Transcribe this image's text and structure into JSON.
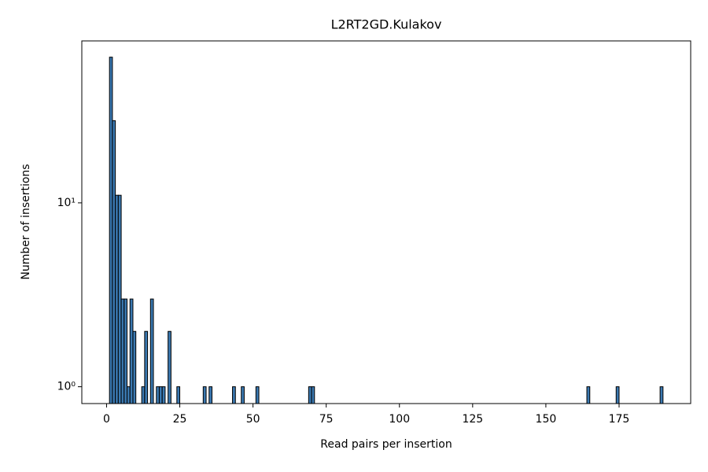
{
  "chart_data": {
    "type": "histogram",
    "title": "L2RT2GD.Kulakov",
    "x_label": "Read pairs per insertion",
    "y_label": "Number of insertions",
    "log_y": true,
    "color": "#3a78b0",
    "edge_color": "#000000",
    "bins": [
      1,
      2,
      3,
      4,
      5,
      6,
      7,
      8,
      9,
      10,
      11,
      12,
      13,
      14,
      15,
      16,
      17,
      18,
      19,
      20,
      21,
      22,
      23,
      24,
      25,
      26,
      27,
      28,
      29,
      30,
      31,
      32,
      33,
      34,
      35,
      36,
      37,
      38,
      39,
      40,
      41,
      42,
      43,
      44,
      45,
      46,
      47,
      48,
      49,
      50,
      51,
      52,
      53,
      54,
      55,
      56,
      57,
      58,
      59,
      60,
      61,
      62,
      63,
      64,
      65,
      66,
      67,
      68,
      69,
      70,
      71,
      72,
      73,
      74,
      75,
      76,
      77,
      78,
      79,
      80,
      81,
      82,
      83,
      84,
      85,
      86,
      87,
      88,
      89,
      90,
      91,
      92,
      93,
      94,
      95,
      96,
      97,
      98,
      99,
      100,
      101,
      102,
      103,
      104,
      105,
      106,
      107,
      108,
      109,
      110,
      111,
      112,
      113,
      114,
      115,
      116,
      117,
      118,
      119,
      120,
      121,
      122,
      123,
      124,
      125,
      126,
      127,
      128,
      129,
      130,
      131,
      132,
      133,
      134,
      135,
      136,
      137,
      138,
      139,
      140,
      141,
      142,
      143,
      144,
      145,
      146,
      147,
      148,
      149,
      150,
      151,
      152,
      153,
      154,
      155,
      156,
      157,
      158,
      159,
      160,
      161,
      162,
      163,
      164,
      165,
      166,
      167,
      168,
      169,
      170,
      171,
      172,
      173,
      174,
      175,
      176,
      177,
      178,
      179,
      180,
      181,
      182,
      183,
      184,
      185,
      186,
      187,
      188,
      189,
      190
    ],
    "counts": [
      62,
      28,
      11,
      11,
      3,
      3,
      1,
      3,
      2,
      0,
      0,
      1,
      2,
      0,
      3,
      0,
      1,
      1,
      1,
      0,
      2,
      0,
      0,
      1,
      0,
      0,
      0,
      0,
      0,
      0,
      0,
      0,
      1,
      0,
      1,
      0,
      0,
      0,
      0,
      0,
      0,
      0,
      1,
      0,
      0,
      1,
      0,
      0,
      0,
      0,
      1,
      0,
      0,
      0,
      0,
      0,
      0,
      0,
      0,
      0,
      0,
      0,
      0,
      0,
      0,
      0,
      0,
      0,
      1,
      1,
      0,
      0,
      0,
      0,
      0,
      0,
      0,
      0,
      0,
      0,
      0,
      0,
      0,
      0,
      0,
      0,
      0,
      0,
      0,
      0,
      0,
      0,
      0,
      0,
      0,
      0,
      0,
      0,
      0,
      0,
      0,
      0,
      0,
      0,
      0,
      0,
      0,
      0,
      0,
      0,
      0,
      0,
      0,
      0,
      0,
      0,
      0,
      0,
      0,
      0,
      0,
      0,
      0,
      0,
      0,
      0,
      0,
      0,
      0,
      0,
      0,
      0,
      0,
      0,
      0,
      0,
      0,
      0,
      0,
      0,
      0,
      0,
      0,
      0,
      0,
      0,
      0,
      0,
      0,
      0,
      0,
      0,
      0,
      0,
      0,
      0,
      0,
      0,
      0,
      0,
      0,
      0,
      0,
      1,
      0,
      0,
      0,
      0,
      0,
      0,
      0,
      0,
      0,
      1,
      0,
      0,
      0,
      0,
      0,
      0,
      0,
      0,
      0,
      0,
      0,
      0,
      0,
      0,
      1
    ],
    "xlim": [
      -8.45,
      199.45
    ],
    "xticks": [
      0,
      25,
      50,
      75,
      100,
      125,
      150,
      175
    ],
    "ylim": [
      0.81,
      76
    ],
    "yticks": [
      {
        "value": 1,
        "label": "10⁰"
      },
      {
        "value": 10,
        "label": "10¹"
      }
    ]
  }
}
